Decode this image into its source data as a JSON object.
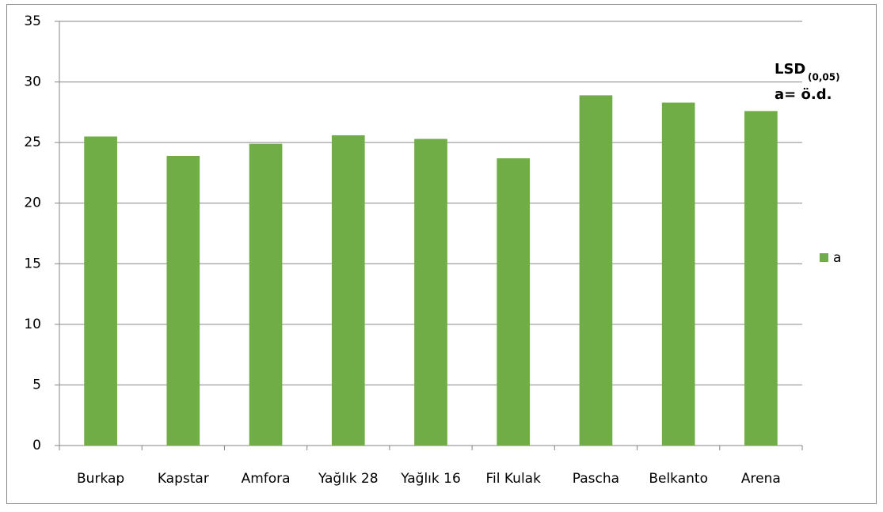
{
  "chart_data": {
    "type": "bar",
    "categories": [
      "Burkap",
      "Kapstar",
      "Amfora",
      "Yağlık 28",
      "Yağlık 16",
      "Fil Kulak",
      "Pascha",
      "Belkanto",
      "Arena"
    ],
    "series": [
      {
        "name": "a",
        "color": "#70ad47",
        "values": [
          25.5,
          23.9,
          24.9,
          25.6,
          25.3,
          23.7,
          28.9,
          28.3,
          27.6
        ]
      }
    ],
    "ylim": [
      0,
      35
    ],
    "yticks": [
      0,
      5,
      10,
      15,
      20,
      25,
      30,
      35
    ],
    "grid": true,
    "legend": "right",
    "annotations": [
      "LSD",
      "(0,05)",
      "a= ö.d."
    ]
  }
}
